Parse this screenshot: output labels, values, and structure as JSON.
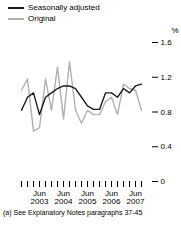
{
  "chart_data": {
    "type": "line",
    "categories": [
      null,
      null,
      null,
      "Jun\n2003",
      null,
      null,
      null,
      "Jun\n2004",
      null,
      null,
      null,
      "Jun\n2005",
      null,
      null,
      null,
      "Jun\n2006",
      null,
      null,
      null,
      "Jun\n2007",
      null
    ],
    "series": [
      {
        "name": "Original",
        "color": "#b0b0b0",
        "values": [
          1.05,
          1.18,
          0.58,
          0.62,
          1.18,
          0.82,
          1.32,
          0.72,
          1.38,
          0.82,
          0.67,
          0.82,
          0.77,
          0.77,
          0.92,
          0.97,
          0.77,
          1.12,
          1.07,
          1.05,
          0.82
        ]
      },
      {
        "name": "Seasonally adjusted",
        "color": "#1a1a1a",
        "values": [
          0.82,
          0.97,
          1.02,
          0.77,
          0.97,
          1.02,
          1.07,
          1.1,
          1.1,
          1.07,
          0.97,
          0.87,
          0.83,
          0.83,
          1.02,
          1.02,
          0.97,
          1.07,
          1.02,
          1.1,
          1.12
        ]
      }
    ],
    "ylabel": "%",
    "ylim": [
      0,
      1.6
    ],
    "yticks": [
      0,
      0.4,
      0.8,
      1.2,
      1.6
    ],
    "legend": "upper left",
    "annotations": [
      "(a) See Explanatory Notes paragraphs 37-45"
    ]
  }
}
